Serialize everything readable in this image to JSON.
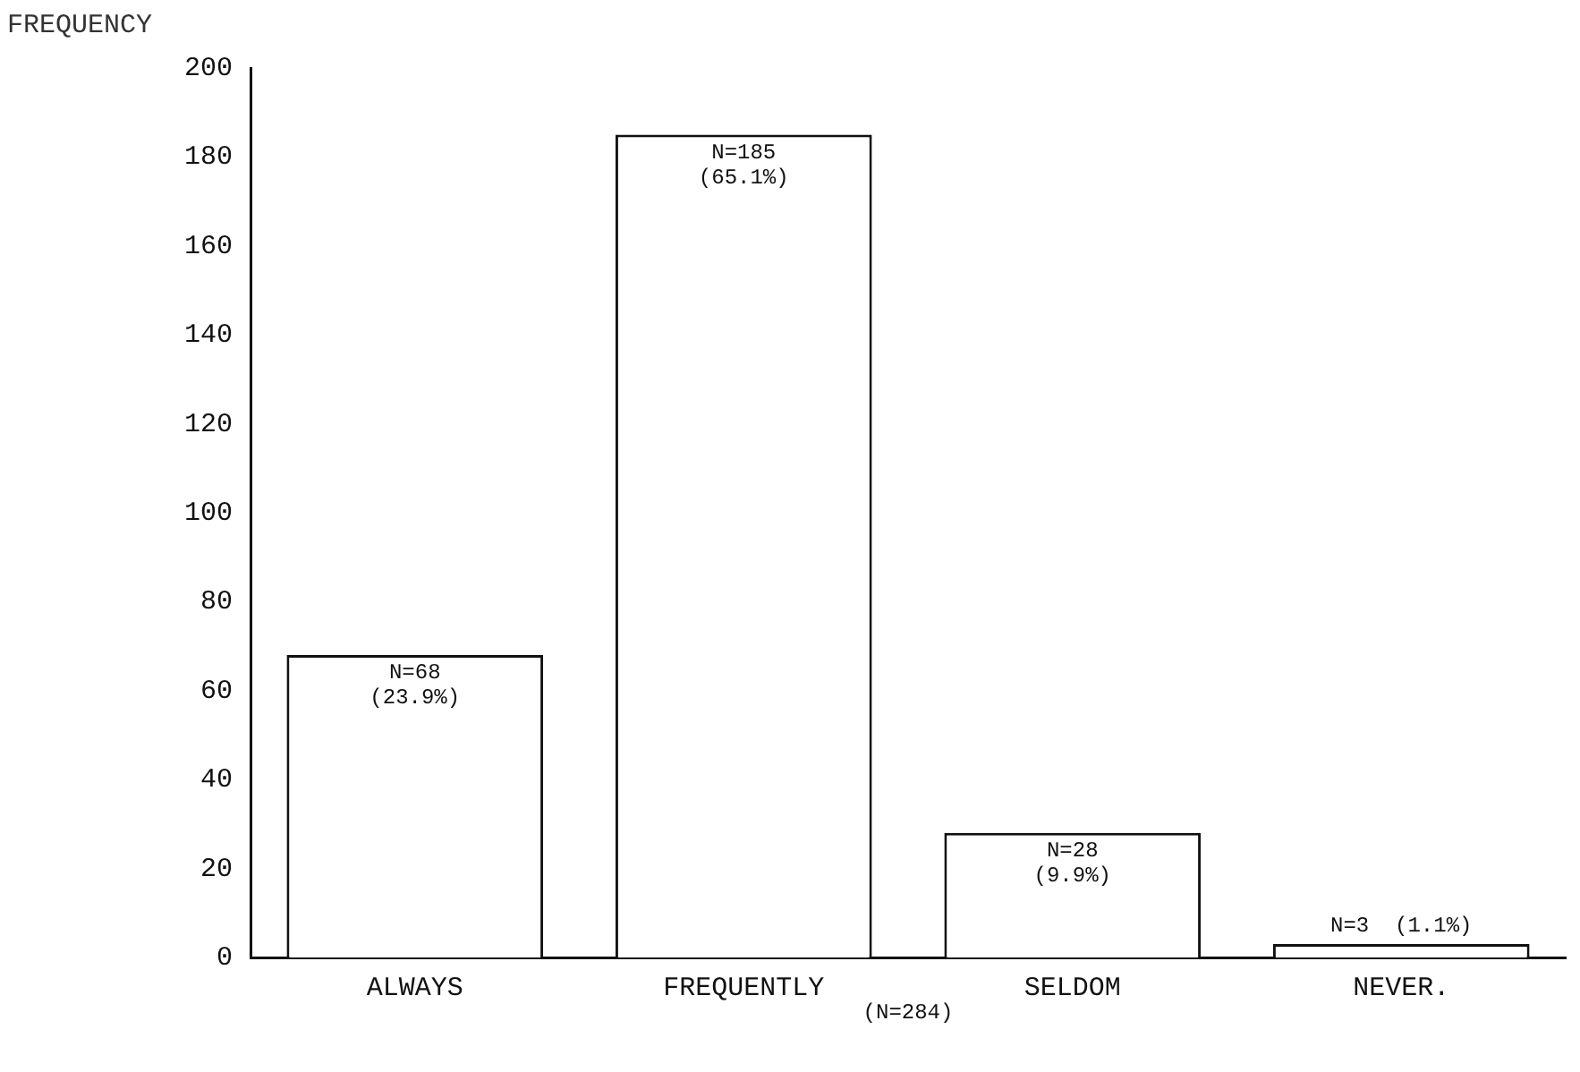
{
  "chart_data": {
    "type": "bar",
    "ylabel": "FREQUENCY",
    "categories": [
      "ALWAYS",
      "FREQUENTLY",
      "SELDOM",
      "NEVER."
    ],
    "values": [
      68,
      185,
      28,
      3
    ],
    "color": "#ffffff",
    "value_labels": [
      "N=68\n(23.9%)",
      "N=185\n(65.1%)",
      "N=28\n(9.9%)",
      "N=3  (1.1%)"
    ],
    "ylim": [
      0,
      200
    ],
    "yticks": [
      0,
      20,
      40,
      60,
      80,
      100,
      120,
      140,
      160,
      180,
      200
    ],
    "grid": false,
    "legend": false,
    "annotations": [
      "(N=284)"
    ]
  }
}
